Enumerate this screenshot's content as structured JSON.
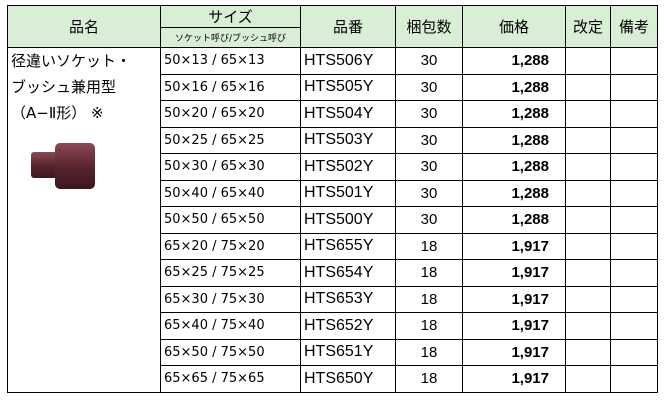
{
  "table": {
    "headers": {
      "name": "品名",
      "size": "サイズ",
      "size_sub": "ソケット呼び/ブッシュ呼び",
      "code": "品番",
      "qty": "梱包数",
      "price": "価格",
      "revision": "改定",
      "note": "備考"
    },
    "product": {
      "lines": [
        "径違いソケット・",
        "ブッシュ兼用型",
        "（A−Ⅱ形） ※"
      ]
    },
    "rows": [
      [
        "50×13 / 65×13",
        "HTS506Y",
        "30",
        "1,288"
      ],
      [
        "50×16 / 65×16",
        "HTS505Y",
        "30",
        "1,288"
      ],
      [
        "50×20 / 65×20",
        "HTS504Y",
        "30",
        "1,288"
      ],
      [
        "50×25 / 65×25",
        "HTS503Y",
        "30",
        "1,288"
      ],
      [
        "50×30 / 65×30",
        "HTS502Y",
        "30",
        "1,288"
      ],
      [
        "50×40 / 65×40",
        "HTS501Y",
        "30",
        "1,288"
      ],
      [
        "50×50 / 65×50",
        "HTS500Y",
        "30",
        "1,288"
      ],
      [
        "65×20 / 75×20",
        "HTS655Y",
        "18",
        "1,917"
      ],
      [
        "65×25 / 75×25",
        "HTS654Y",
        "18",
        "1,917"
      ],
      [
        "65×30 / 75×30",
        "HTS653Y",
        "18",
        "1,917"
      ],
      [
        "65×40 / 75×40",
        "HTS652Y",
        "18",
        "1,917"
      ],
      [
        "65×50 / 75×50",
        "HTS651Y",
        "18",
        "1,917"
      ],
      [
        "65×65 / 75×65",
        "HTS650Y",
        "18",
        "1,917"
      ]
    ]
  }
}
